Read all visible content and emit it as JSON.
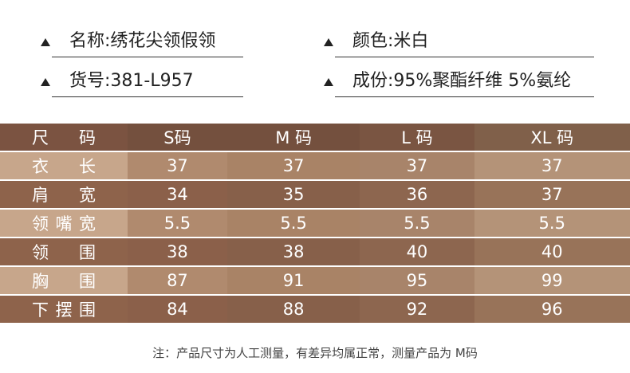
{
  "info": [
    {
      "text": "名称:绣花尖领假领"
    },
    {
      "text": "颜色:米白"
    },
    {
      "text": "货号:381-L957"
    },
    {
      "text": "成份:95%聚酯纤维 5%氨纶"
    }
  ],
  "table": {
    "header": [
      "尺码",
      "S码",
      "M 码",
      "L 码",
      "XL 码"
    ],
    "rows": [
      [
        "衣长",
        37,
        37,
        37,
        37
      ],
      [
        "肩宽",
        34,
        35,
        36,
        37
      ],
      [
        "领嘴宽",
        5.5,
        5.5,
        5.5,
        5.5
      ],
      [
        "领围",
        38,
        38,
        40,
        40
      ],
      [
        "胸围",
        87,
        91,
        95,
        99
      ],
      [
        "下摆围",
        84,
        88,
        92,
        96
      ]
    ]
  },
  "note": "注：产品尺寸为人工测量，有差异均属正常，测量产品为 M码"
}
